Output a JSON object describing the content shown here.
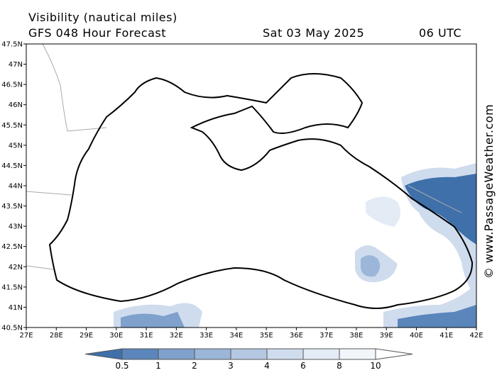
{
  "header": {
    "title": "Visibility (nautical miles)",
    "model": "GFS 048 Hour Forecast",
    "date": "Sat 03 May 2025",
    "time": "06 UTC"
  },
  "lat_labels": [
    "47.5N",
    "47N",
    "46.5N",
    "46N",
    "45.5N",
    "45N",
    "44.5N",
    "44N",
    "43.5N",
    "43N",
    "42.5N",
    "42N",
    "41.5N",
    "41N",
    "40.5N"
  ],
  "lon_labels": [
    "27E",
    "28E",
    "29E",
    "30E",
    "31E",
    "32E",
    "33E",
    "34E",
    "35E",
    "36E",
    "37E",
    "38E",
    "39E",
    "40E",
    "41E",
    "42E"
  ],
  "legend": {
    "labels": [
      "0.5",
      "1",
      "2",
      "3",
      "4",
      "6",
      "8",
      "10"
    ]
  },
  "watermark": "© www.PassageWeather.com"
}
